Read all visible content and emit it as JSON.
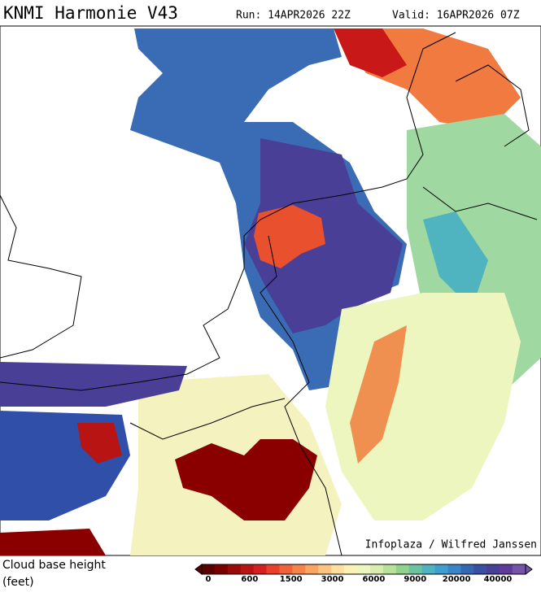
{
  "header": {
    "title": "KNMI Harmonie V43",
    "run": "Run: 14APR2026 22Z",
    "valid": "Valid: 16APR2026 07Z"
  },
  "map": {
    "credit": "Infoplaza / Wilfred Janssen"
  },
  "legend": {
    "label_line1": "Cloud base height",
    "label_line2": "(feet)",
    "ticks": [
      0,
      600,
      1500,
      3000,
      6000,
      9000,
      20000,
      40000
    ],
    "colors": [
      "#5a0000",
      "#7a0000",
      "#9a0a0a",
      "#b81414",
      "#d42020",
      "#e8402a",
      "#f0623a",
      "#f4844c",
      "#f9a663",
      "#fcc482",
      "#fde0a0",
      "#fbf3b6",
      "#eef6c0",
      "#d7eeae",
      "#b8e29c",
      "#93d28e",
      "#6cc3a0",
      "#4fb3c0",
      "#3fa0cf",
      "#3a85c6",
      "#3568b3",
      "#3a4fa2",
      "#4a3f96",
      "#5e3d98",
      "#7654aa"
    ]
  }
}
